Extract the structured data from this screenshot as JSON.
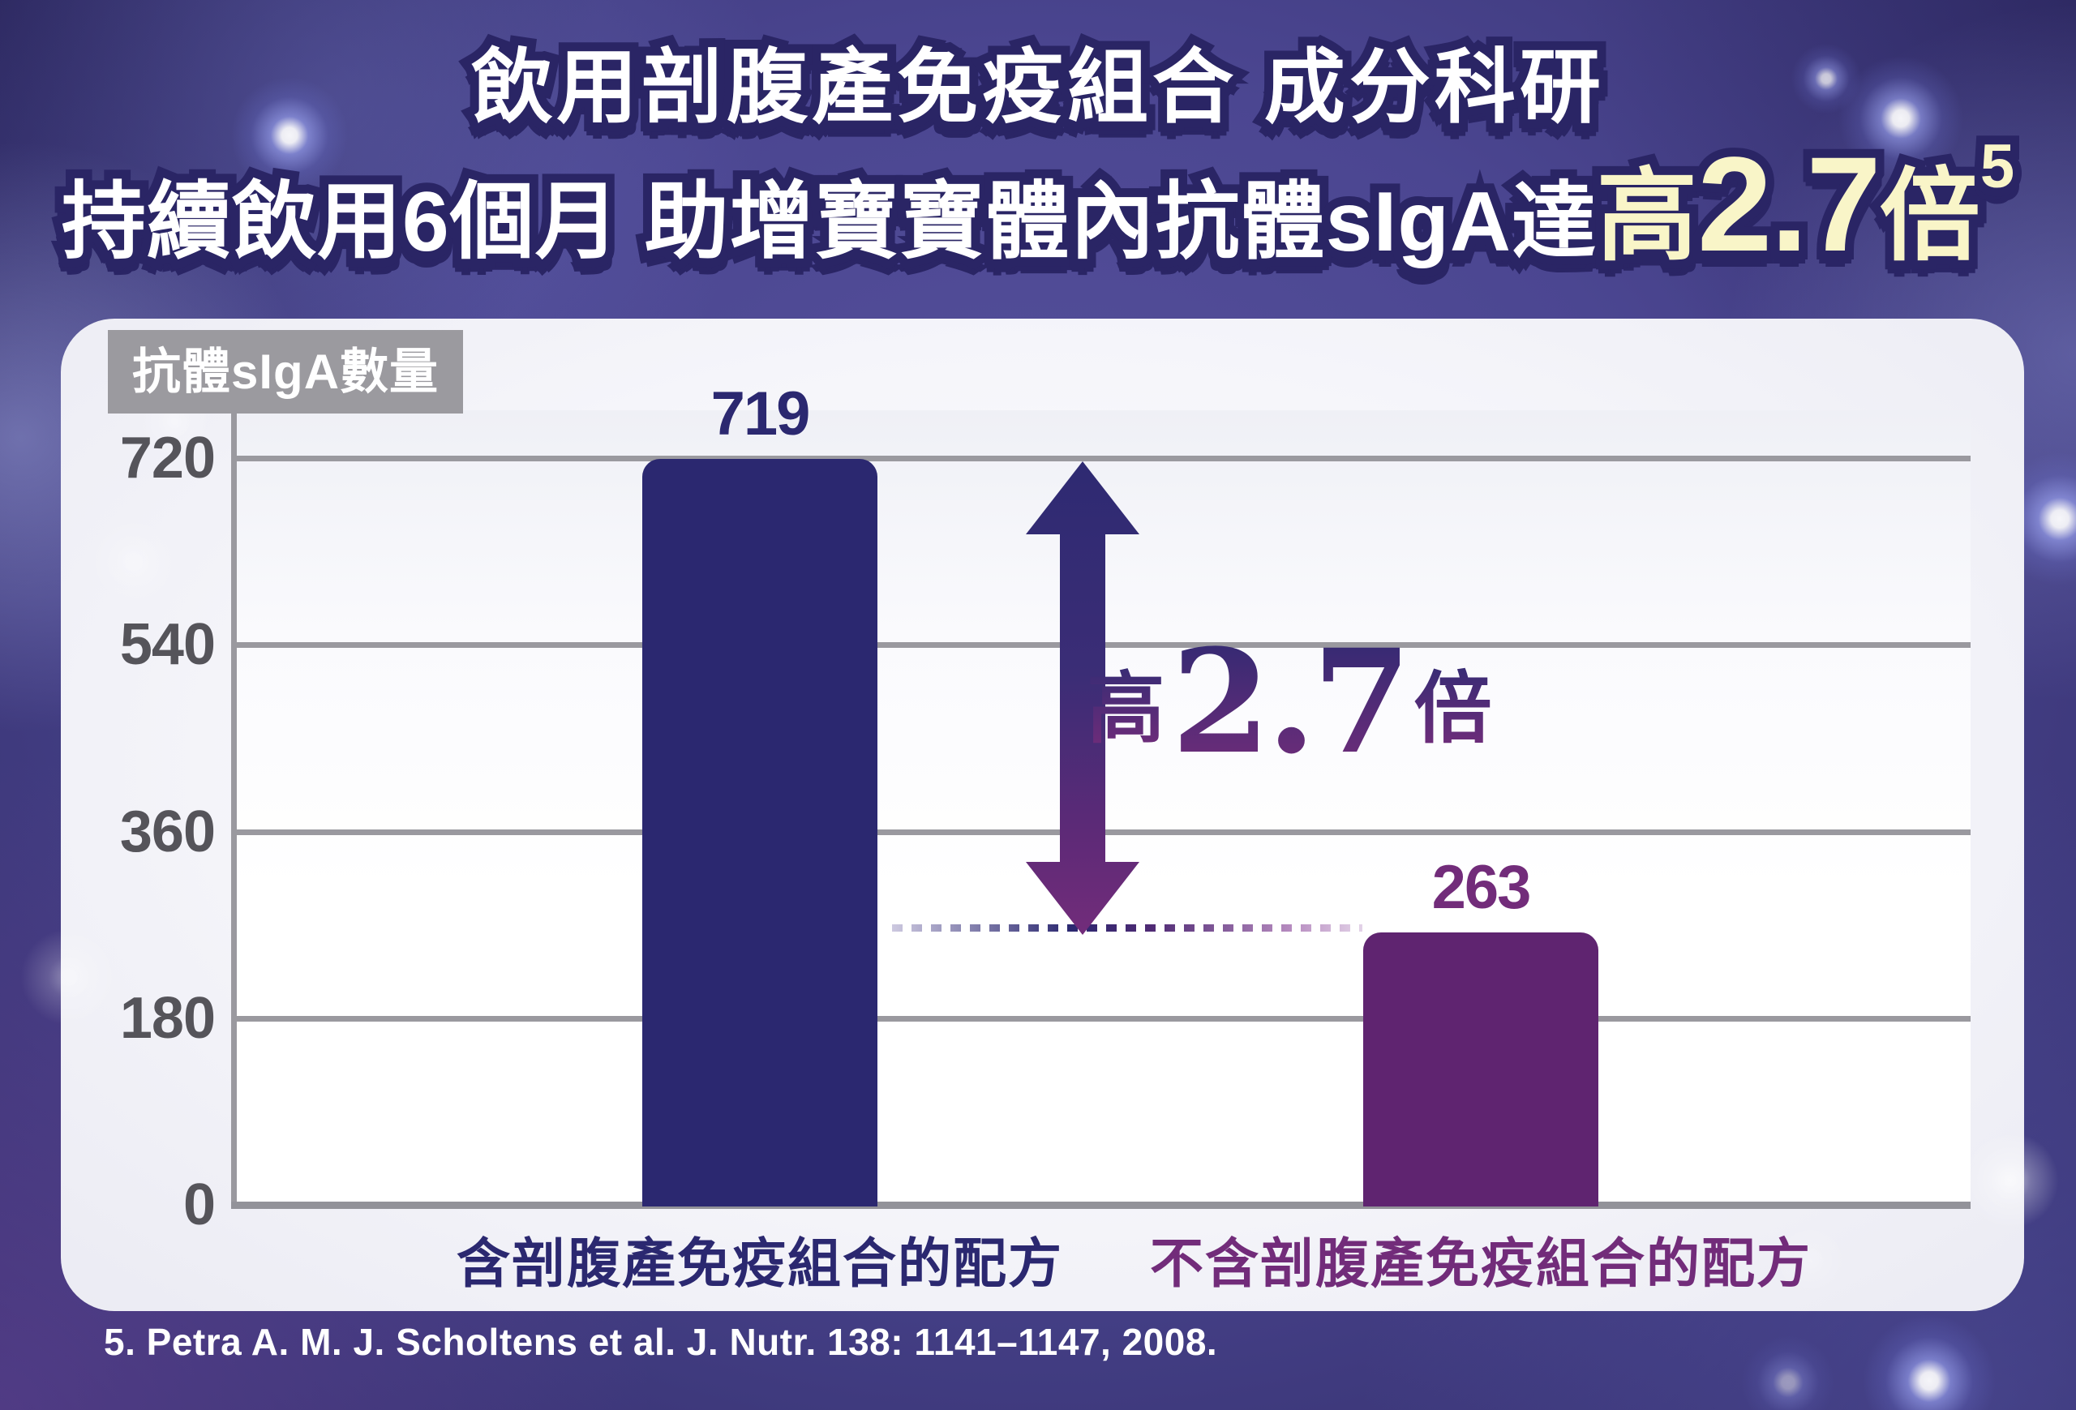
{
  "title": {
    "line1": "飲用剖腹產免疫組合 成分科研",
    "line2_prefix": "持續飲用6個月 助增寶寶體內抗體sIgA達",
    "line2_highlight_pre": "高",
    "line2_highlight_num": "2.7",
    "line2_highlight_post": "倍",
    "line2_superscript": "5"
  },
  "chart_data": {
    "type": "bar",
    "title": "",
    "ylabel": "抗體sIgA數量",
    "xlabel": "",
    "categories": [
      "含剖腹產免疫組合的配方",
      "不含剖腹產免疫組合的配方"
    ],
    "values": [
      719,
      263
    ],
    "bar_colors": [
      "#2b2870",
      "#5f2470"
    ],
    "label_colors": [
      "#2b2870",
      "#722c7a"
    ],
    "yticks": [
      0,
      180,
      360,
      540,
      720
    ],
    "ylim": [
      0,
      770
    ],
    "grid": true,
    "legend": "none",
    "annotation": {
      "pre": "高",
      "num": "2.7",
      "post": "倍"
    }
  },
  "footer": {
    "citation": "5. Petra A. M. J. Scholtens et al. J. Nutr. 138: 1141–1147, 2008."
  },
  "colors": {
    "navy": "#2b2870",
    "purple": "#5f2470",
    "highlight_yellow": "#f9f5c8",
    "grid_gray": "#9a999f",
    "card_bg": "#ededf4"
  }
}
